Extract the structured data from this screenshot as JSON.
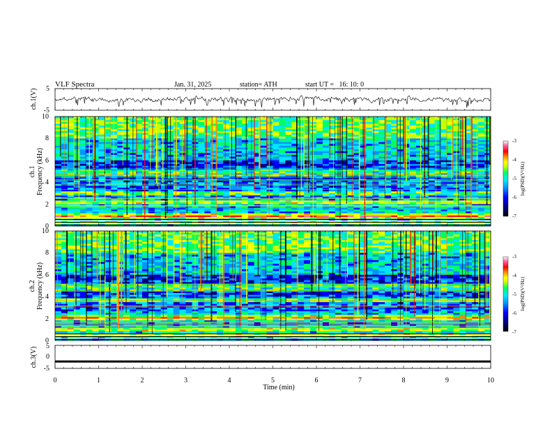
{
  "header": {
    "title": "VLF Spectra",
    "date": "Jan. 31, 2025",
    "station": "station= ATH",
    "start_ut": "start UT =   16: 10: 0"
  },
  "colors": {
    "spectrogram_scale": [
      "#000000",
      "#000080",
      "#0000ff",
      "#0096ff",
      "#00e6ff",
      "#00ff64",
      "#c8ff00",
      "#ffff00",
      "#ff8000",
      "#ff0000",
      "#ff64a0",
      "#ffffff"
    ]
  },
  "chart_data": [
    {
      "type": "line",
      "panel": "ch1-waveform",
      "ylabel": "ch.1(V)",
      "ylim": [
        -5,
        5
      ],
      "yticks": [
        "5",
        "-5"
      ],
      "xlim": [
        0,
        10
      ],
      "series": [
        {
          "values_summary": "noisy waveform near 0 V with spikes to about -2 V"
        }
      ]
    },
    {
      "type": "heatmap",
      "panel": "ch1-spectrogram",
      "ylabel_lines": [
        "ch.1",
        "Frequency (kHz)"
      ],
      "ylim": [
        0,
        10
      ],
      "yticks": [
        "0",
        "2",
        "4",
        "6",
        "8",
        "10"
      ],
      "xlim": [
        0,
        10
      ],
      "bands_khz": [
        0.3,
        0.8,
        1.0,
        2.2,
        3.0,
        4.6,
        5.0
      ],
      "colorbar": {
        "label": "log(PSD)(V²/Hz)",
        "ticks": [
          "-3",
          "-4",
          "-5",
          "-6",
          "-7"
        ],
        "range": [
          -7,
          -3
        ]
      }
    },
    {
      "type": "heatmap",
      "panel": "ch2-spectrogram",
      "ylabel_lines": [
        "ch.2",
        "Frequency (kHz)"
      ],
      "ylim": [
        0,
        10
      ],
      "yticks": [
        "0",
        "2",
        "4",
        "6",
        "8",
        "10"
      ],
      "xlim": [
        0,
        10
      ],
      "bands_khz": [
        0.5,
        1.0,
        2.0,
        2.2,
        3.6,
        4.6,
        5.0
      ],
      "colorbar": {
        "label": "log(PSD)(V²/Hz)",
        "ticks": [
          "-3",
          "-4",
          "-5",
          "-6",
          "-7"
        ],
        "range": [
          -7,
          -3
        ]
      }
    },
    {
      "type": "line",
      "panel": "ch3-waveform",
      "ylabel": "ch.3(V)",
      "ylim": [
        -5,
        5
      ],
      "yticks": [
        "5",
        "0",
        "-5"
      ],
      "xlim": [
        0,
        10
      ],
      "xlabel": "Time (min)",
      "xticks": [
        "0",
        "1",
        "2",
        "3",
        "4",
        "5",
        "6",
        "7",
        "8",
        "9",
        "10"
      ],
      "series": [
        {
          "values_summary": "flat line near -2 V"
        }
      ]
    }
  ]
}
